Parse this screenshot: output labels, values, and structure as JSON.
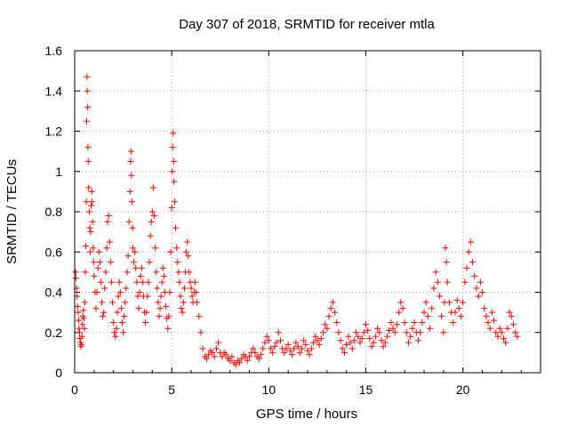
{
  "chart_data": {
    "type": "scatter",
    "title": "Day 307 of 2018, SRMTID for receiver mtla",
    "xlabel": "GPS time / hours",
    "ylabel": "SRMTID / TECUs",
    "xlim": [
      0,
      24
    ],
    "ylim": [
      0,
      1.6
    ],
    "xticks": [
      0,
      5,
      10,
      15,
      20
    ],
    "xtick_labels": [
      "0",
      "5",
      "10",
      "15",
      "20"
    ],
    "yticks": [
      0,
      0.2,
      0.4,
      0.6,
      0.8,
      1,
      1.2,
      1.4,
      1.6
    ],
    "ytick_labels": [
      "0",
      "0.2",
      "0.4",
      "0.6",
      "0.8",
      "1",
      "1.2",
      "1.4",
      "1.6"
    ],
    "grid": true,
    "marker": "plus",
    "color": "#ff0000",
    "series": [
      {
        "name": "SRMTID",
        "points": [
          [
            0.05,
            0.5
          ],
          [
            0.07,
            0.47
          ],
          [
            0.1,
            0.42
          ],
          [
            0.12,
            0.38
          ],
          [
            0.15,
            0.33
          ],
          [
            0.18,
            0.3
          ],
          [
            0.2,
            0.26
          ],
          [
            0.22,
            0.22
          ],
          [
            0.25,
            0.2
          ],
          [
            0.27,
            0.17
          ],
          [
            0.3,
            0.15
          ],
          [
            0.32,
            0.13
          ],
          [
            0.35,
            0.14
          ],
          [
            0.38,
            0.18
          ],
          [
            0.4,
            0.24
          ],
          [
            0.42,
            0.28
          ],
          [
            0.45,
            0.31
          ],
          [
            0.47,
            0.27
          ],
          [
            0.5,
            0.22
          ],
          [
            0.52,
            0.35
          ],
          [
            0.55,
            0.5
          ],
          [
            0.57,
            0.63
          ],
          [
            0.6,
            0.85
          ],
          [
            0.62,
            1.25
          ],
          [
            0.63,
            1.47
          ],
          [
            0.65,
            1.4
          ],
          [
            0.67,
            1.32
          ],
          [
            0.68,
            1.12
          ],
          [
            0.7,
            1.05
          ],
          [
            0.72,
            0.92
          ],
          [
            0.75,
            0.8
          ],
          [
            0.78,
            0.72
          ],
          [
            0.8,
            0.6
          ],
          [
            0.82,
            0.7
          ],
          [
            0.85,
            0.83
          ],
          [
            0.88,
            0.9
          ],
          [
            0.9,
            0.85
          ],
          [
            0.92,
            0.75
          ],
          [
            0.95,
            0.62
          ],
          [
            0.98,
            0.55
          ],
          [
            1.0,
            0.48
          ],
          [
            1.05,
            0.4
          ],
          [
            1.1,
            0.32
          ],
          [
            1.15,
            0.4
          ],
          [
            1.2,
            0.52
          ],
          [
            1.25,
            0.6
          ],
          [
            1.3,
            0.55
          ],
          [
            1.35,
            0.45
          ],
          [
            1.4,
            0.35
          ],
          [
            1.45,
            0.28
          ],
          [
            1.5,
            0.3
          ],
          [
            1.55,
            0.42
          ],
          [
            1.6,
            0.5
          ],
          [
            1.65,
            0.62
          ],
          [
            1.7,
            0.75
          ],
          [
            1.75,
            0.78
          ],
          [
            1.8,
            0.65
          ],
          [
            1.85,
            0.55
          ],
          [
            1.9,
            0.45
          ],
          [
            1.95,
            0.35
          ],
          [
            2.0,
            0.25
          ],
          [
            2.05,
            0.2
          ],
          [
            2.1,
            0.18
          ],
          [
            2.15,
            0.22
          ],
          [
            2.2,
            0.3
          ],
          [
            2.25,
            0.38
          ],
          [
            2.3,
            0.45
          ],
          [
            2.35,
            0.4
          ],
          [
            2.4,
            0.32
          ],
          [
            2.45,
            0.25
          ],
          [
            2.5,
            0.2
          ],
          [
            2.55,
            0.28
          ],
          [
            2.6,
            0.35
          ],
          [
            2.65,
            0.42
          ],
          [
            2.7,
            0.5
          ],
          [
            2.75,
            0.58
          ],
          [
            2.8,
            0.75
          ],
          [
            2.85,
            0.9
          ],
          [
            2.88,
            1.05
          ],
          [
            2.9,
            1.1
          ],
          [
            2.92,
            0.98
          ],
          [
            2.95,
            0.85
          ],
          [
            2.98,
            0.72
          ],
          [
            3.0,
            0.62
          ],
          [
            3.05,
            0.55
          ],
          [
            3.1,
            0.6
          ],
          [
            3.15,
            0.52
          ],
          [
            3.2,
            0.45
          ],
          [
            3.25,
            0.38
          ],
          [
            3.3,
            0.32
          ],
          [
            3.35,
            0.4
          ],
          [
            3.4,
            0.48
          ],
          [
            3.45,
            0.52
          ],
          [
            3.5,
            0.45
          ],
          [
            3.55,
            0.38
          ],
          [
            3.6,
            0.3
          ],
          [
            3.65,
            0.25
          ],
          [
            3.7,
            0.3
          ],
          [
            3.75,
            0.38
          ],
          [
            3.8,
            0.45
          ],
          [
            3.85,
            0.55
          ],
          [
            3.9,
            0.68
          ],
          [
            3.95,
            0.75
          ],
          [
            4.0,
            0.8
          ],
          [
            4.05,
            0.92
          ],
          [
            4.1,
            0.78
          ],
          [
            4.15,
            0.62
          ],
          [
            4.2,
            0.5
          ],
          [
            4.25,
            0.42
          ],
          [
            4.3,
            0.35
          ],
          [
            4.35,
            0.28
          ],
          [
            4.4,
            0.32
          ],
          [
            4.45,
            0.38
          ],
          [
            4.5,
            0.45
          ],
          [
            4.55,
            0.52
          ],
          [
            4.6,
            0.48
          ],
          [
            4.65,
            0.4
          ],
          [
            4.7,
            0.33
          ],
          [
            4.75,
            0.27
          ],
          [
            4.8,
            0.22
          ],
          [
            4.85,
            0.28
          ],
          [
            4.9,
            0.4
          ],
          [
            4.95,
            0.6
          ],
          [
            5.0,
            0.82
          ],
          [
            5.03,
            1.0
          ],
          [
            5.05,
            1.12
          ],
          [
            5.07,
            1.19
          ],
          [
            5.1,
            1.05
          ],
          [
            5.12,
            0.95
          ],
          [
            5.15,
            0.85
          ],
          [
            5.2,
            0.72
          ],
          [
            5.25,
            0.62
          ],
          [
            5.3,
            0.55
          ],
          [
            5.35,
            0.5
          ],
          [
            5.4,
            0.45
          ],
          [
            5.45,
            0.38
          ],
          [
            5.5,
            0.32
          ],
          [
            5.55,
            0.3
          ],
          [
            5.6,
            0.35
          ],
          [
            5.65,
            0.42
          ],
          [
            5.7,
            0.5
          ],
          [
            5.75,
            0.6
          ],
          [
            5.8,
            0.65
          ],
          [
            5.85,
            0.58
          ],
          [
            5.9,
            0.5
          ],
          [
            5.95,
            0.45
          ],
          [
            6.0,
            0.42
          ],
          [
            6.05,
            0.38
          ],
          [
            6.1,
            0.35
          ],
          [
            6.15,
            0.4
          ],
          [
            6.2,
            0.45
          ],
          [
            6.25,
            0.4
          ],
          [
            6.3,
            0.35
          ],
          [
            6.4,
            0.28
          ],
          [
            6.5,
            0.2
          ],
          [
            6.6,
            0.12
          ],
          [
            6.7,
            0.08
          ],
          [
            6.8,
            0.07
          ],
          [
            6.9,
            0.09
          ],
          [
            7.0,
            0.11
          ],
          [
            7.1,
            0.1
          ],
          [
            7.2,
            0.08
          ],
          [
            7.3,
            0.12
          ],
          [
            7.4,
            0.15
          ],
          [
            7.5,
            0.1
          ],
          [
            7.6,
            0.08
          ],
          [
            7.7,
            0.1
          ],
          [
            7.8,
            0.09
          ],
          [
            7.9,
            0.07
          ],
          [
            8.0,
            0.06
          ],
          [
            8.1,
            0.08
          ],
          [
            8.2,
            0.05
          ],
          [
            8.3,
            0.04
          ],
          [
            8.4,
            0.06
          ],
          [
            8.5,
            0.05
          ],
          [
            8.6,
            0.07
          ],
          [
            8.7,
            0.09
          ],
          [
            8.8,
            0.08
          ],
          [
            8.9,
            0.06
          ],
          [
            9.0,
            0.08
          ],
          [
            9.1,
            0.1
          ],
          [
            9.2,
            0.12
          ],
          [
            9.3,
            0.1
          ],
          [
            9.4,
            0.08
          ],
          [
            9.5,
            0.07
          ],
          [
            9.6,
            0.09
          ],
          [
            9.7,
            0.12
          ],
          [
            9.8,
            0.15
          ],
          [
            9.9,
            0.18
          ],
          [
            10.0,
            0.16
          ],
          [
            10.1,
            0.12
          ],
          [
            10.2,
            0.1
          ],
          [
            10.3,
            0.13
          ],
          [
            10.4,
            0.15
          ],
          [
            10.5,
            0.2
          ],
          [
            10.6,
            0.16
          ],
          [
            10.7,
            0.12
          ],
          [
            10.8,
            0.1
          ],
          [
            10.9,
            0.12
          ],
          [
            11.0,
            0.14
          ],
          [
            11.1,
            0.11
          ],
          [
            11.2,
            0.09
          ],
          [
            11.3,
            0.12
          ],
          [
            11.4,
            0.15
          ],
          [
            11.5,
            0.13
          ],
          [
            11.6,
            0.1
          ],
          [
            11.7,
            0.12
          ],
          [
            11.8,
            0.16
          ],
          [
            11.9,
            0.14
          ],
          [
            12.0,
            0.11
          ],
          [
            12.1,
            0.09
          ],
          [
            12.2,
            0.12
          ],
          [
            12.3,
            0.15
          ],
          [
            12.4,
            0.18
          ],
          [
            12.5,
            0.16
          ],
          [
            12.6,
            0.14
          ],
          [
            12.7,
            0.17
          ],
          [
            12.8,
            0.2
          ],
          [
            12.9,
            0.24
          ],
          [
            13.0,
            0.22
          ],
          [
            13.1,
            0.28
          ],
          [
            13.2,
            0.32
          ],
          [
            13.3,
            0.35
          ],
          [
            13.4,
            0.3
          ],
          [
            13.5,
            0.25
          ],
          [
            13.6,
            0.2
          ],
          [
            13.7,
            0.16
          ],
          [
            13.8,
            0.12
          ],
          [
            13.9,
            0.1
          ],
          [
            14.0,
            0.14
          ],
          [
            14.1,
            0.18
          ],
          [
            14.2,
            0.15
          ],
          [
            14.3,
            0.12
          ],
          [
            14.4,
            0.16
          ],
          [
            14.5,
            0.2
          ],
          [
            14.6,
            0.18
          ],
          [
            14.7,
            0.15
          ],
          [
            14.8,
            0.17
          ],
          [
            14.9,
            0.2
          ],
          [
            15.0,
            0.24
          ],
          [
            15.1,
            0.21
          ],
          [
            15.2,
            0.17
          ],
          [
            15.3,
            0.13
          ],
          [
            15.4,
            0.15
          ],
          [
            15.5,
            0.18
          ],
          [
            15.6,
            0.22
          ],
          [
            15.7,
            0.2
          ],
          [
            15.8,
            0.16
          ],
          [
            15.9,
            0.13
          ],
          [
            16.0,
            0.15
          ],
          [
            16.1,
            0.18
          ],
          [
            16.2,
            0.21
          ],
          [
            16.3,
            0.25
          ],
          [
            16.4,
            0.22
          ],
          [
            16.5,
            0.2
          ],
          [
            16.6,
            0.24
          ],
          [
            16.7,
            0.3
          ],
          [
            16.8,
            0.35
          ],
          [
            16.9,
            0.32
          ],
          [
            17.0,
            0.25
          ],
          [
            17.1,
            0.2
          ],
          [
            17.2,
            0.15
          ],
          [
            17.3,
            0.18
          ],
          [
            17.4,
            0.22
          ],
          [
            17.5,
            0.25
          ],
          [
            17.6,
            0.2
          ],
          [
            17.7,
            0.16
          ],
          [
            17.8,
            0.2
          ],
          [
            17.9,
            0.25
          ],
          [
            18.0,
            0.3
          ],
          [
            18.1,
            0.35
          ],
          [
            18.2,
            0.28
          ],
          [
            18.3,
            0.22
          ],
          [
            18.4,
            0.32
          ],
          [
            18.5,
            0.42
          ],
          [
            18.6,
            0.5
          ],
          [
            18.7,
            0.45
          ],
          [
            18.8,
            0.38
          ],
          [
            18.9,
            0.28
          ],
          [
            19.0,
            0.2
          ],
          [
            19.05,
            0.35
          ],
          [
            19.1,
            0.62
          ],
          [
            19.15,
            0.55
          ],
          [
            19.2,
            0.45
          ],
          [
            19.3,
            0.35
          ],
          [
            19.4,
            0.3
          ],
          [
            19.5,
            0.25
          ],
          [
            19.6,
            0.3
          ],
          [
            19.7,
            0.36
          ],
          [
            19.8,
            0.32
          ],
          [
            19.9,
            0.28
          ],
          [
            20.0,
            0.35
          ],
          [
            20.1,
            0.45
          ],
          [
            20.2,
            0.52
          ],
          [
            20.3,
            0.6
          ],
          [
            20.4,
            0.65
          ],
          [
            20.5,
            0.55
          ],
          [
            20.6,
            0.48
          ],
          [
            20.7,
            0.42
          ],
          [
            20.8,
            0.38
          ],
          [
            20.9,
            0.45
          ],
          [
            21.0,
            0.4
          ],
          [
            21.1,
            0.32
          ],
          [
            21.2,
            0.28
          ],
          [
            21.3,
            0.25
          ],
          [
            21.4,
            0.22
          ],
          [
            21.5,
            0.3
          ],
          [
            21.6,
            0.26
          ],
          [
            21.7,
            0.2
          ],
          [
            21.8,
            0.18
          ],
          [
            21.9,
            0.22
          ],
          [
            22.0,
            0.2
          ],
          [
            22.1,
            0.17
          ],
          [
            22.2,
            0.15
          ],
          [
            22.3,
            0.22
          ],
          [
            22.4,
            0.3
          ],
          [
            22.5,
            0.28
          ],
          [
            22.6,
            0.24
          ],
          [
            22.7,
            0.2
          ],
          [
            22.8,
            0.18
          ]
        ]
      }
    ]
  }
}
